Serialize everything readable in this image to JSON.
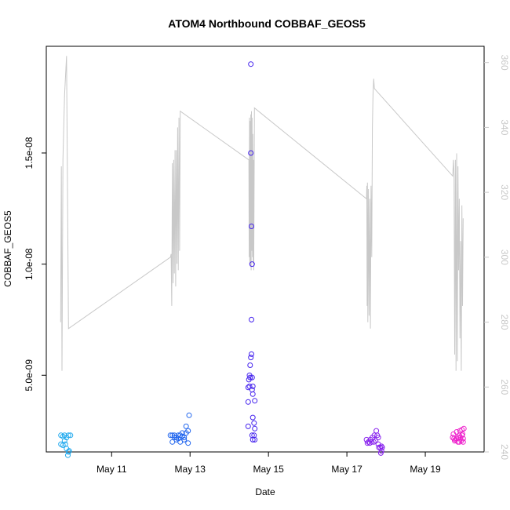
{
  "chart_data": {
    "type": "scatter",
    "title": "ATOM4 Northbound COBBAF_GEOS5",
    "xlabel": "Date",
    "ylabel": "COBBAF_GEOS5",
    "x_ticks": [
      {
        "date": "2016-05-11",
        "label": "May 11"
      },
      {
        "date": "2016-05-13",
        "label": "May 13"
      },
      {
        "date": "2016-05-15",
        "label": "May 15"
      },
      {
        "date": "2016-05-17",
        "label": "May 17"
      },
      {
        "date": "2016-05-19",
        "label": "May 19"
      }
    ],
    "xlim": [
      "2016-05-09T08:00",
      "2016-05-20T12:00"
    ],
    "ylim": [
      1.55e-09,
      1.98e-08
    ],
    "y_ticks": [
      {
        "value": 5e-09,
        "label": "5.0e-09"
      },
      {
        "value": 1e-08,
        "label": "1.0e-08"
      },
      {
        "value": 1.5e-08,
        "label": "1.5e-08"
      }
    ],
    "y2lim": [
      240,
      365
    ],
    "y2_ticks": [
      {
        "value": 240,
        "label": "240"
      },
      {
        "value": 260,
        "label": "260"
      },
      {
        "value": 280,
        "label": "280"
      },
      {
        "value": 300,
        "label": "300"
      },
      {
        "value": 320,
        "label": "320"
      },
      {
        "value": 340,
        "label": "340"
      },
      {
        "value": 360,
        "label": "360"
      }
    ],
    "grid": false,
    "legend": "none",
    "series": [
      {
        "color": "#22aaee",
        "points": [
          [
            "2016-05-09T17:00",
            2.3e-09
          ],
          [
            "2016-05-09T18:12",
            2.25e-09
          ],
          [
            "2016-05-09T19:12",
            2.3e-09
          ],
          [
            "2016-05-09T20:24",
            2.2e-09
          ],
          [
            "2016-05-09T21:36",
            2.3e-09
          ],
          [
            "2016-05-09T22:48",
            2.3e-09
          ],
          [
            "2016-05-09T17:00",
            1.9e-09
          ],
          [
            "2016-05-09T18:12",
            1.85e-09
          ],
          [
            "2016-05-09T19:36",
            1.9e-09
          ],
          [
            "2016-05-09T20:24",
            1.7e-09
          ],
          [
            "2016-05-09T21:36",
            1.55e-09
          ],
          [
            "2016-05-09T22:00",
            1.6e-09
          ],
          [
            "2016-05-09T21:12",
            1.4e-09
          ],
          [
            "2016-05-09T19:12",
            2.05e-09
          ]
        ]
      },
      {
        "color": "#2266ee",
        "points": [
          [
            "2016-05-12T12:00",
            2.3e-09
          ],
          [
            "2016-05-12T13:12",
            2.3e-09
          ],
          [
            "2016-05-12T14:24",
            2.3e-09
          ],
          [
            "2016-05-12T15:36",
            2.2e-09
          ],
          [
            "2016-05-12T16:48",
            2.3e-09
          ],
          [
            "2016-05-12T18:00",
            2.3e-09
          ],
          [
            "2016-05-12T19:12",
            2.4e-09
          ],
          [
            "2016-05-12T20:24",
            2.2e-09
          ],
          [
            "2016-05-12T21:36",
            2.4e-09
          ],
          [
            "2016-05-12T22:48",
            2.5e-09
          ],
          [
            "2016-05-12T13:12",
            2e-09
          ],
          [
            "2016-05-12T15:36",
            2.1e-09
          ],
          [
            "2016-05-12T18:00",
            2e-09
          ],
          [
            "2016-05-12T20:24",
            2.1e-09
          ],
          [
            "2016-05-12T22:48",
            1.95e-09
          ],
          [
            "2016-05-12T21:36",
            2.7e-09
          ],
          [
            "2016-05-12T23:24",
            3.2e-09
          ],
          [
            "2016-05-12T14:24",
            2.2e-09
          ],
          [
            "2016-05-12T16:48",
            2.15e-09
          ],
          [
            "2016-05-12T19:12",
            2.25e-09
          ]
        ]
      },
      {
        "color": "#4422ee",
        "points": [
          [
            "2016-05-14T13:12",
            1.9e-08
          ],
          [
            "2016-05-14T13:12",
            1.5e-08
          ],
          [
            "2016-05-14T13:36",
            1.17e-08
          ],
          [
            "2016-05-14T14:00",
            1e-08
          ],
          [
            "2016-05-14T13:36",
            7.5e-09
          ],
          [
            "2016-05-14T13:36",
            5.95e-09
          ],
          [
            "2016-05-14T13:12",
            5.8e-09
          ],
          [
            "2016-05-14T12:48",
            5.45e-09
          ],
          [
            "2016-05-14T12:24",
            5e-09
          ],
          [
            "2016-05-14T12:48",
            4.9e-09
          ],
          [
            "2016-05-14T12:00",
            4.8e-09
          ],
          [
            "2016-05-14T14:00",
            4.9e-09
          ],
          [
            "2016-05-14T14:24",
            4.5e-09
          ],
          [
            "2016-05-14T14:00",
            4.35e-09
          ],
          [
            "2016-05-14T14:24",
            4.15e-09
          ],
          [
            "2016-05-14T11:36",
            4.45e-09
          ],
          [
            "2016-05-14T12:24",
            4.5e-09
          ],
          [
            "2016-05-14T11:36",
            3.8e-09
          ],
          [
            "2016-05-14T15:36",
            3.85e-09
          ],
          [
            "2016-05-14T14:24",
            3.1e-09
          ],
          [
            "2016-05-14T15:12",
            2.85e-09
          ],
          [
            "2016-05-14T11:36",
            2.7e-09
          ],
          [
            "2016-05-14T15:36",
            2.6e-09
          ],
          [
            "2016-05-14T14:00",
            2.3e-09
          ],
          [
            "2016-05-14T15:12",
            2.3e-09
          ],
          [
            "2016-05-14T14:24",
            2.1e-09
          ],
          [
            "2016-05-14T15:36",
            2.1e-09
          ]
        ]
      },
      {
        "color": "#8822ee",
        "points": [
          [
            "2016-05-17T12:00",
            2.1e-09
          ],
          [
            "2016-05-17T13:12",
            2e-09
          ],
          [
            "2016-05-17T14:24",
            2.1e-09
          ],
          [
            "2016-05-17T15:36",
            2.2e-09
          ],
          [
            "2016-05-17T16:48",
            2.3e-09
          ],
          [
            "2016-05-17T18:00",
            2.5e-09
          ],
          [
            "2016-05-17T18:36",
            2.3e-09
          ],
          [
            "2016-05-17T12:36",
            1.95e-09
          ],
          [
            "2016-05-17T14:00",
            1.95e-09
          ],
          [
            "2016-05-17T15:12",
            2e-09
          ],
          [
            "2016-05-17T16:24",
            2e-09
          ],
          [
            "2016-05-17T17:36",
            2.05e-09
          ],
          [
            "2016-05-17T19:12",
            2.2e-09
          ],
          [
            "2016-05-17T19:12",
            1.9e-09
          ],
          [
            "2016-05-17T19:36",
            1.75e-09
          ],
          [
            "2016-05-17T20:24",
            1.75e-09
          ],
          [
            "2016-05-17T21:12",
            1.8e-09
          ],
          [
            "2016-05-17T21:12",
            1.6e-09
          ],
          [
            "2016-05-17T20:48",
            1.5e-09
          ],
          [
            "2016-05-17T21:36",
            1.75e-09
          ]
        ]
      },
      {
        "color": "#ee22cc",
        "points": [
          [
            "2016-05-19T16:48",
            2.2e-09
          ],
          [
            "2016-05-19T17:36",
            2.15e-09
          ],
          [
            "2016-05-19T18:24",
            2.1e-09
          ],
          [
            "2016-05-19T19:12",
            2.15e-09
          ],
          [
            "2016-05-19T20:00",
            2.2e-09
          ],
          [
            "2016-05-19T20:48",
            2.3e-09
          ],
          [
            "2016-05-19T21:36",
            2.2e-09
          ],
          [
            "2016-05-19T22:24",
            2.3e-09
          ],
          [
            "2016-05-19T23:12",
            2.15e-09
          ],
          [
            "2016-05-19T18:00",
            2.05e-09
          ],
          [
            "2016-05-19T20:00",
            2e-09
          ],
          [
            "2016-05-19T22:00",
            2.05e-09
          ],
          [
            "2016-05-19T23:12",
            2e-09
          ],
          [
            "2016-05-19T19:12",
            2.45e-09
          ],
          [
            "2016-05-19T21:12",
            2.5e-09
          ],
          [
            "2016-05-19T22:24",
            2.55e-09
          ],
          [
            "2016-05-19T23:36",
            2.6e-09
          ],
          [
            "2016-05-19T17:12",
            2.35e-09
          ],
          [
            "2016-05-19T20:48",
            2e-09
          ],
          [
            "2016-05-19T22:48",
            2.35e-09
          ]
        ]
      }
    ],
    "secondary_line": {
      "color": "#c8c8c8",
      "axis": "right",
      "points": [
        [
          "2016-05-09T16:48",
          280
        ],
        [
          "2016-05-09T17:12",
          328
        ],
        [
          "2016-05-09T17:36",
          265
        ],
        [
          "2016-05-09T18:12",
          330
        ],
        [
          "2016-05-09T19:12",
          350
        ],
        [
          "2016-05-09T20:24",
          362
        ],
        [
          "2016-05-09T21:36",
          278
        ],
        [
          "2016-05-12T12:00",
          300
        ],
        [
          "2016-05-12T12:24",
          301
        ],
        [
          "2016-05-12T12:48",
          285
        ],
        [
          "2016-05-12T13:12",
          329
        ],
        [
          "2016-05-12T13:36",
          292
        ],
        [
          "2016-05-12T14:00",
          330
        ],
        [
          "2016-05-12T14:24",
          295
        ],
        [
          "2016-05-12T14:48",
          333
        ],
        [
          "2016-05-12T15:12",
          291
        ],
        [
          "2016-05-12T15:36",
          333
        ],
        [
          "2016-05-12T16:00",
          298
        ],
        [
          "2016-05-12T16:24",
          340
        ],
        [
          "2016-05-12T16:48",
          296
        ],
        [
          "2016-05-12T17:12",
          343
        ],
        [
          "2016-05-12T17:36",
          302
        ],
        [
          "2016-05-12T18:00",
          345
        ],
        [
          "2016-05-14T12:00",
          330
        ],
        [
          "2016-05-14T12:12",
          300
        ],
        [
          "2016-05-14T12:24",
          343
        ],
        [
          "2016-05-14T12:36",
          298
        ],
        [
          "2016-05-14T12:48",
          342
        ],
        [
          "2016-05-14T13:00",
          297
        ],
        [
          "2016-05-14T13:12",
          344
        ],
        [
          "2016-05-14T13:24",
          296
        ],
        [
          "2016-05-14T13:36",
          345
        ],
        [
          "2016-05-14T13:48",
          302
        ],
        [
          "2016-05-14T14:00",
          343
        ],
        [
          "2016-05-14T14:12",
          300
        ],
        [
          "2016-05-14T14:24",
          338
        ],
        [
          "2016-05-14T14:36",
          298
        ],
        [
          "2016-05-14T14:48",
          330
        ],
        [
          "2016-05-14T15:00",
          296
        ],
        [
          "2016-05-14T15:24",
          346
        ],
        [
          "2016-05-17T12:00",
          318
        ],
        [
          "2016-05-17T12:12",
          322
        ],
        [
          "2016-05-17T12:24",
          285
        ],
        [
          "2016-05-17T12:36",
          323
        ],
        [
          "2016-05-17T12:48",
          280
        ],
        [
          "2016-05-17T13:12",
          321
        ],
        [
          "2016-05-17T13:36",
          282
        ],
        [
          "2016-05-17T14:00",
          318
        ],
        [
          "2016-05-17T14:24",
          278
        ],
        [
          "2016-05-17T14:48",
          322
        ],
        [
          "2016-05-17T15:12",
          300
        ],
        [
          "2016-05-17T15:36",
          340
        ],
        [
          "2016-05-17T16:00",
          350
        ],
        [
          "2016-05-17T16:24",
          355
        ],
        [
          "2016-05-17T16:48",
          352
        ],
        [
          "2016-05-19T16:48",
          325
        ],
        [
          "2016-05-19T17:12",
          330
        ],
        [
          "2016-05-19T17:36",
          325
        ],
        [
          "2016-05-19T18:00",
          270
        ],
        [
          "2016-05-19T18:24",
          330
        ],
        [
          "2016-05-19T18:48",
          265
        ],
        [
          "2016-05-19T19:12",
          332
        ],
        [
          "2016-05-19T19:36",
          268
        ],
        [
          "2016-05-19T20:00",
          328
        ],
        [
          "2016-05-19T20:24",
          296
        ],
        [
          "2016-05-19T20:48",
          318
        ],
        [
          "2016-05-19T21:12",
          275
        ],
        [
          "2016-05-19T21:36",
          305
        ],
        [
          "2016-05-19T22:00",
          265
        ],
        [
          "2016-05-19T22:24",
          316
        ],
        [
          "2016-05-19T22:48",
          285
        ],
        [
          "2016-05-19T23:12",
          312
        ]
      ]
    }
  }
}
